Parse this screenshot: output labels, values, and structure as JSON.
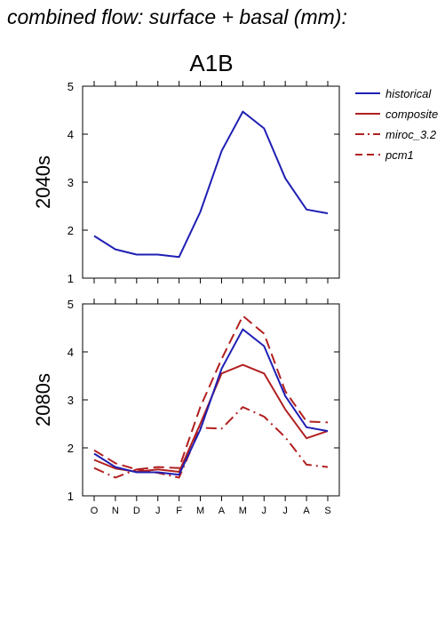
{
  "page_title": "combined flow: surface + basal (mm):",
  "scenario": "A1B",
  "colors": {
    "historical": "#1f1fb4",
    "projection": "#b21f1f"
  },
  "legend": [
    "historical",
    "composite",
    "miroc_3.2",
    "pcm1"
  ],
  "chart_data": [
    {
      "type": "line",
      "panel_label": "2040s",
      "categories": [
        "O",
        "N",
        "D",
        "J",
        "F",
        "M",
        "A",
        "M",
        "J",
        "J",
        "A",
        "S"
      ],
      "ylim": [
        1,
        5
      ],
      "yticks": [
        1,
        2,
        3,
        4,
        5
      ],
      "grid": false,
      "legend_position": "right",
      "series": [
        {
          "name": "historical",
          "style": "solid",
          "color": "#1f1fb4",
          "values": [
            1.88,
            1.6,
            1.49,
            1.49,
            1.44,
            2.38,
            3.65,
            4.47,
            4.12,
            3.08,
            2.43,
            2.35
          ]
        }
      ]
    },
    {
      "type": "line",
      "panel_label": "2080s",
      "categories": [
        "O",
        "N",
        "D",
        "J",
        "F",
        "M",
        "A",
        "M",
        "J",
        "J",
        "A",
        "S"
      ],
      "ylim": [
        1,
        5
      ],
      "yticks": [
        1,
        2,
        3,
        4,
        5
      ],
      "grid": false,
      "legend_position": "right",
      "series": [
        {
          "name": "historical",
          "style": "solid",
          "color": "#1f1fb4",
          "values": [
            1.88,
            1.6,
            1.49,
            1.49,
            1.44,
            2.38,
            3.65,
            4.47,
            4.12,
            3.08,
            2.43,
            2.35
          ]
        },
        {
          "name": "composite",
          "style": "solid",
          "color": "#b21f1f",
          "values": [
            1.75,
            1.57,
            1.5,
            1.55,
            1.5,
            2.5,
            3.55,
            3.73,
            3.55,
            2.8,
            2.2,
            2.35
          ]
        },
        {
          "name": "miroc_3.2",
          "style": "dashdot",
          "color": "#b21f1f",
          "values": [
            1.58,
            1.38,
            1.55,
            1.48,
            1.38,
            2.42,
            2.4,
            2.85,
            2.65,
            2.22,
            1.65,
            1.6
          ]
        },
        {
          "name": "pcm1",
          "style": "dashed",
          "color": "#b21f1f",
          "values": [
            1.95,
            1.68,
            1.55,
            1.6,
            1.58,
            2.85,
            3.85,
            4.75,
            4.38,
            3.18,
            2.55,
            2.53
          ]
        }
      ]
    }
  ]
}
